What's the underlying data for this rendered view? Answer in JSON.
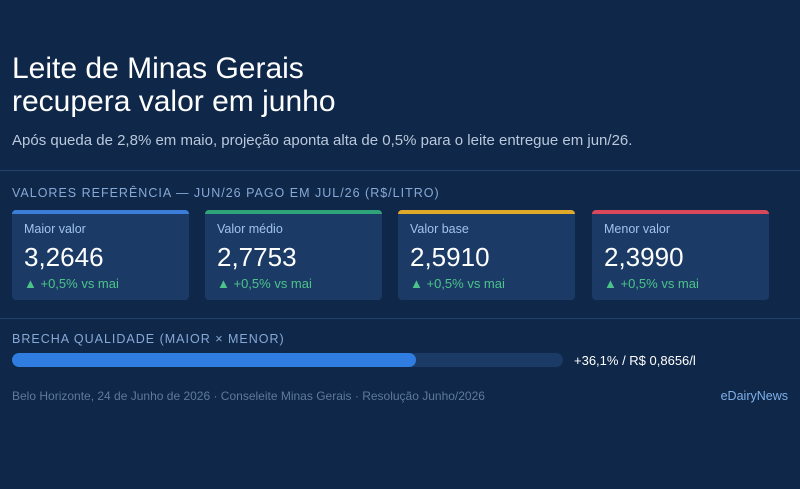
{
  "header": {
    "title_lines": [
      "Leite de Minas Gerais",
      "recupera valor em junho"
    ],
    "subtitle": "Após queda de 2,8% em maio, projeção aponta alta de 0,5% para o leite entregue em jun/26."
  },
  "values_section": {
    "label": "VALORES REFERÊNCIA — JUN/26 PAGO EM JUL/26 (R$/LITRO)",
    "cards": [
      {
        "label": "Maior valor",
        "value": "3,2646",
        "change": "▲ +0,5% vs mai"
      },
      {
        "label": "Valor médio",
        "value": "2,7753",
        "change": "▲ +0,5% vs mai"
      },
      {
        "label": "Valor base",
        "value": "2,5910",
        "change": "▲ +0,5% vs mai"
      },
      {
        "label": "Menor valor",
        "value": "2,3990",
        "change": "▲ +0,5% vs mai"
      }
    ]
  },
  "gap_section": {
    "label": "BRECHA QUALIDADE (MAIOR × MENOR)",
    "text": "+36,1% / R$ 0,8656/l"
  },
  "footer": {
    "source": "Belo Horizonte, 24 de Junho de 2026 · Conseleite Minas Gerais · Resolução Junho/2026",
    "brand": "eDairyNews"
  }
}
